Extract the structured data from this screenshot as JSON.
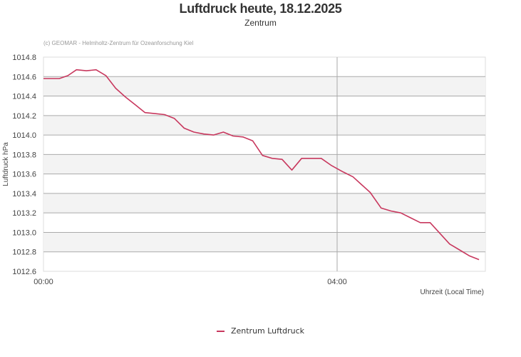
{
  "header": {
    "title": "Luftdruck heute, 18.12.2025",
    "subtitle": "Zentrum",
    "credit": "(c) GEOMAR - Helmholtz-Zentrum für Ozeanforschung Kiel"
  },
  "legend": {
    "label": "Zentrum Luftdruck",
    "color": "#c8385e"
  },
  "chart_data": {
    "type": "line",
    "title": "Luftdruck heute, 18.12.2025",
    "subtitle": "Zentrum",
    "xlabel": "Uhrzeit (Local Time)",
    "ylabel": "Luftdruck hPa",
    "ylim": [
      1012.6,
      1014.8
    ],
    "yticks": [
      "1014.8",
      "1014.6",
      "1014.4",
      "1014.2",
      "1014.0",
      "1013.8",
      "1013.6",
      "1013.4",
      "1013.2",
      "1013.0",
      "1012.8",
      "1012.6"
    ],
    "xticks": [
      "00:00",
      "04:00"
    ],
    "grid": true,
    "legend_position": "bottom",
    "series": [
      {
        "name": "Zentrum Luftdruck",
        "color": "#c8385e",
        "x": [
          "00:00",
          "00:13",
          "00:20",
          "00:27",
          "00:35",
          "00:43",
          "00:51",
          "00:59",
          "01:07",
          "01:15",
          "01:23",
          "01:31",
          "01:39",
          "01:47",
          "01:55",
          "02:03",
          "02:11",
          "02:19",
          "02:27",
          "02:35",
          "02:43",
          "02:51",
          "02:59",
          "03:07",
          "03:15",
          "03:23",
          "03:31",
          "03:39",
          "03:47",
          "03:55",
          "04:05",
          "04:13",
          "04:20",
          "04:27",
          "04:36",
          "04:44",
          "04:52",
          "05:00",
          "05:08",
          "05:16",
          "05:24",
          "05:32",
          "05:40",
          "05:48",
          "05:56"
        ],
        "values": [
          1014.58,
          1014.58,
          1014.61,
          1014.67,
          1014.66,
          1014.67,
          1014.61,
          1014.48,
          1014.39,
          1014.31,
          1014.23,
          1014.22,
          1014.21,
          1014.17,
          1014.07,
          1014.03,
          1014.01,
          1014.0,
          1014.03,
          1013.99,
          1013.98,
          1013.94,
          1013.79,
          1013.76,
          1013.75,
          1013.64,
          1013.76,
          1013.76,
          1013.76,
          1013.69,
          1013.62,
          1013.57,
          1013.49,
          1013.41,
          1013.25,
          1013.22,
          1013.2,
          1013.15,
          1013.1,
          1013.1,
          1012.99,
          1012.88,
          1012.82,
          1012.76,
          1012.72
        ]
      }
    ]
  }
}
